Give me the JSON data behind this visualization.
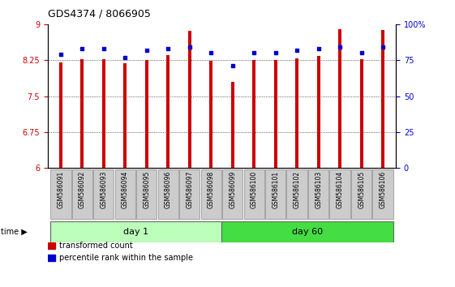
{
  "title": "GDS4374 / 8066905",
  "samples": [
    "GSM586091",
    "GSM586092",
    "GSM586093",
    "GSM586094",
    "GSM586095",
    "GSM586096",
    "GSM586097",
    "GSM586098",
    "GSM586099",
    "GSM586100",
    "GSM586101",
    "GSM586102",
    "GSM586103",
    "GSM586104",
    "GSM586105",
    "GSM586106"
  ],
  "transformed_counts": [
    8.2,
    8.28,
    8.28,
    8.18,
    8.25,
    8.35,
    8.87,
    8.24,
    7.8,
    8.25,
    8.25,
    8.29,
    8.34,
    8.9,
    8.28,
    8.88
  ],
  "percentile_ranks": [
    79,
    83,
    83,
    77,
    82,
    83,
    84,
    80,
    71,
    80,
    80,
    82,
    83,
    84,
    80,
    84
  ],
  "day1_count": 8,
  "day60_count": 8,
  "ylim_left": [
    6,
    9
  ],
  "ylim_right": [
    0,
    100
  ],
  "yticks_left": [
    6,
    6.75,
    7.5,
    8.25,
    9
  ],
  "yticks_right": [
    0,
    25,
    50,
    75,
    100
  ],
  "ytick_labels_left": [
    "6",
    "6.75",
    "7.5",
    "8.25",
    "9"
  ],
  "ytick_labels_right": [
    "0",
    "25",
    "50",
    "75",
    "100%"
  ],
  "bar_color": "#cc0000",
  "dot_color": "#0000cc",
  "day1_color": "#bbffbb",
  "day60_color": "#44dd44",
  "bar_bottom": 6,
  "background_color": "#ffffff",
  "tick_label_bg": "#cccccc",
  "bar_width": 0.15,
  "legend_items": [
    {
      "color": "#cc0000",
      "label": "transformed count"
    },
    {
      "color": "#0000cc",
      "label": "percentile rank within the sample"
    }
  ]
}
